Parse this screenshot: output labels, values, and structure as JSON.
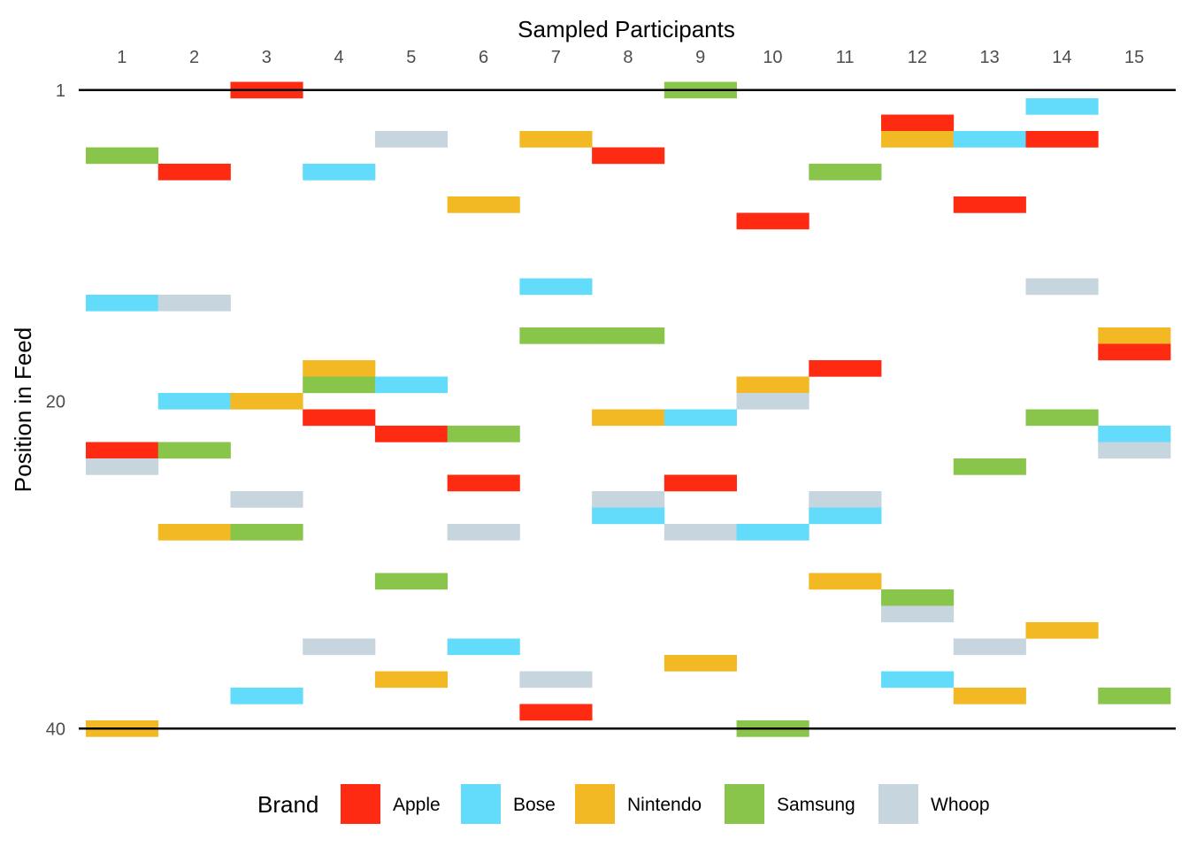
{
  "chart_data": {
    "type": "heatmap",
    "title": "",
    "xlabel": "Sampled Participants",
    "ylabel": "Position in Feed",
    "x_ticks": [
      "1",
      "2",
      "3",
      "4",
      "5",
      "6",
      "7",
      "8",
      "9",
      "10",
      "11",
      "12",
      "13",
      "14",
      "15"
    ],
    "y_ticks": [
      "1",
      "20",
      "40"
    ],
    "y_reference_lines": [
      1,
      40
    ],
    "ylim": [
      1,
      40
    ],
    "grid": false,
    "legend": {
      "title": "Brand",
      "position": "bottom",
      "entries": [
        {
          "brand": "Apple",
          "color": "#FF2A12"
        },
        {
          "brand": "Bose",
          "color": "#63DCFC"
        },
        {
          "brand": "Nintendo",
          "color": "#F3B925"
        },
        {
          "brand": "Samsung",
          "color": "#88C54A"
        },
        {
          "brand": "Whoop",
          "color": "#C7D5DE"
        }
      ]
    },
    "cells": [
      {
        "participant": 1,
        "position": 5,
        "brand": "Samsung"
      },
      {
        "participant": 1,
        "position": 14,
        "brand": "Bose"
      },
      {
        "participant": 1,
        "position": 23,
        "brand": "Apple"
      },
      {
        "participant": 1,
        "position": 24,
        "brand": "Whoop"
      },
      {
        "participant": 1,
        "position": 40,
        "brand": "Nintendo"
      },
      {
        "participant": 2,
        "position": 6,
        "brand": "Apple"
      },
      {
        "participant": 2,
        "position": 14,
        "brand": "Whoop"
      },
      {
        "participant": 2,
        "position": 20,
        "brand": "Bose"
      },
      {
        "participant": 2,
        "position": 23,
        "brand": "Samsung"
      },
      {
        "participant": 2,
        "position": 28,
        "brand": "Nintendo"
      },
      {
        "participant": 3,
        "position": 1,
        "brand": "Apple"
      },
      {
        "participant": 3,
        "position": 20,
        "brand": "Nintendo"
      },
      {
        "participant": 3,
        "position": 26,
        "brand": "Whoop"
      },
      {
        "participant": 3,
        "position": 28,
        "brand": "Samsung"
      },
      {
        "participant": 3,
        "position": 38,
        "brand": "Bose"
      },
      {
        "participant": 4,
        "position": 6,
        "brand": "Bose"
      },
      {
        "participant": 4,
        "position": 18,
        "brand": "Nintendo"
      },
      {
        "participant": 4,
        "position": 19,
        "brand": "Samsung"
      },
      {
        "participant": 4,
        "position": 21,
        "brand": "Apple"
      },
      {
        "participant": 4,
        "position": 35,
        "brand": "Whoop"
      },
      {
        "participant": 5,
        "position": 4,
        "brand": "Whoop"
      },
      {
        "participant": 5,
        "position": 19,
        "brand": "Bose"
      },
      {
        "participant": 5,
        "position": 22,
        "brand": "Apple"
      },
      {
        "participant": 5,
        "position": 31,
        "brand": "Samsung"
      },
      {
        "participant": 5,
        "position": 37,
        "brand": "Nintendo"
      },
      {
        "participant": 6,
        "position": 8,
        "brand": "Nintendo"
      },
      {
        "participant": 6,
        "position": 22,
        "brand": "Samsung"
      },
      {
        "participant": 6,
        "position": 25,
        "brand": "Apple"
      },
      {
        "participant": 6,
        "position": 28,
        "brand": "Whoop"
      },
      {
        "participant": 6,
        "position": 35,
        "brand": "Bose"
      },
      {
        "participant": 7,
        "position": 4,
        "brand": "Nintendo"
      },
      {
        "participant": 7,
        "position": 13,
        "brand": "Bose"
      },
      {
        "participant": 7,
        "position": 16,
        "brand": "Samsung"
      },
      {
        "participant": 7,
        "position": 37,
        "brand": "Whoop"
      },
      {
        "participant": 7,
        "position": 39,
        "brand": "Apple"
      },
      {
        "participant": 8,
        "position": 5,
        "brand": "Apple"
      },
      {
        "participant": 8,
        "position": 16,
        "brand": "Samsung"
      },
      {
        "participant": 8,
        "position": 21,
        "brand": "Nintendo"
      },
      {
        "participant": 8,
        "position": 26,
        "brand": "Whoop"
      },
      {
        "participant": 8,
        "position": 27,
        "brand": "Bose"
      },
      {
        "participant": 9,
        "position": 1,
        "brand": "Samsung"
      },
      {
        "participant": 9,
        "position": 21,
        "brand": "Bose"
      },
      {
        "participant": 9,
        "position": 25,
        "brand": "Apple"
      },
      {
        "participant": 9,
        "position": 28,
        "brand": "Whoop"
      },
      {
        "participant": 9,
        "position": 36,
        "brand": "Nintendo"
      },
      {
        "participant": 10,
        "position": 9,
        "brand": "Apple"
      },
      {
        "participant": 10,
        "position": 19,
        "brand": "Nintendo"
      },
      {
        "participant": 10,
        "position": 20,
        "brand": "Whoop"
      },
      {
        "participant": 10,
        "position": 28,
        "brand": "Bose"
      },
      {
        "participant": 10,
        "position": 40,
        "brand": "Samsung"
      },
      {
        "participant": 11,
        "position": 6,
        "brand": "Samsung"
      },
      {
        "participant": 11,
        "position": 18,
        "brand": "Apple"
      },
      {
        "participant": 11,
        "position": 26,
        "brand": "Whoop"
      },
      {
        "participant": 11,
        "position": 27,
        "brand": "Bose"
      },
      {
        "participant": 11,
        "position": 31,
        "brand": "Nintendo"
      },
      {
        "participant": 12,
        "position": 3,
        "brand": "Apple"
      },
      {
        "participant": 12,
        "position": 4,
        "brand": "Nintendo"
      },
      {
        "participant": 12,
        "position": 32,
        "brand": "Samsung"
      },
      {
        "participant": 12,
        "position": 33,
        "brand": "Whoop"
      },
      {
        "participant": 12,
        "position": 37,
        "brand": "Bose"
      },
      {
        "participant": 13,
        "position": 4,
        "brand": "Bose"
      },
      {
        "participant": 13,
        "position": 8,
        "brand": "Apple"
      },
      {
        "participant": 13,
        "position": 24,
        "brand": "Samsung"
      },
      {
        "participant": 13,
        "position": 35,
        "brand": "Whoop"
      },
      {
        "participant": 13,
        "position": 38,
        "brand": "Nintendo"
      },
      {
        "participant": 14,
        "position": 2,
        "brand": "Bose"
      },
      {
        "participant": 14,
        "position": 4,
        "brand": "Apple"
      },
      {
        "participant": 14,
        "position": 13,
        "brand": "Whoop"
      },
      {
        "participant": 14,
        "position": 21,
        "brand": "Samsung"
      },
      {
        "participant": 14,
        "position": 34,
        "brand": "Nintendo"
      },
      {
        "participant": 15,
        "position": 16,
        "brand": "Nintendo"
      },
      {
        "participant": 15,
        "position": 17,
        "brand": "Apple"
      },
      {
        "participant": 15,
        "position": 22,
        "brand": "Bose"
      },
      {
        "participant": 15,
        "position": 23,
        "brand": "Whoop"
      },
      {
        "participant": 15,
        "position": 38,
        "brand": "Samsung"
      }
    ]
  }
}
